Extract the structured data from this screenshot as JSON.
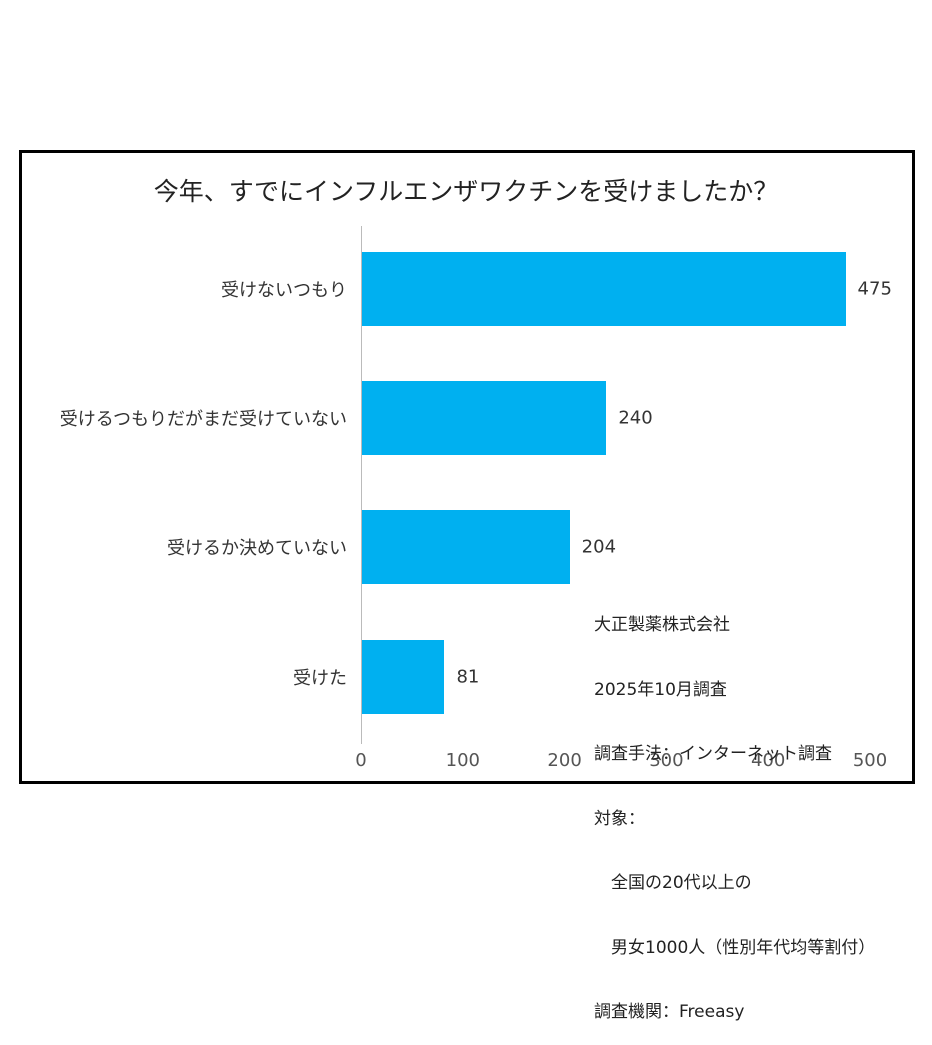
{
  "chart_data": {
    "type": "bar",
    "orientation": "horizontal",
    "title": "今年、すでにインフルエンザワクチンを受けましたか？",
    "categories": [
      "受けないつもり",
      "受けるつもりだがまだ受けていない",
      "受けるか決めていない",
      "受けた"
    ],
    "values": [
      475,
      240,
      204,
      81
    ],
    "value_labels": [
      "475",
      "240",
      "204",
      "81"
    ],
    "xlabel": "",
    "ylabel": "",
    "xlim": [
      0,
      500
    ],
    "x_ticks": [
      "0",
      "100",
      "200",
      "300",
      "400",
      "500"
    ],
    "grid": false,
    "legend": null,
    "bar_color": "#00b0f0"
  },
  "note": {
    "lines": [
      "大正製薬株式会社",
      "2025年10月調査",
      "調査手法：インターネット調査",
      "対象：",
      "　全国の20代以上の",
      "　男女1000人（性別年代均等割付）",
      "調査機関：Freeasy"
    ]
  }
}
